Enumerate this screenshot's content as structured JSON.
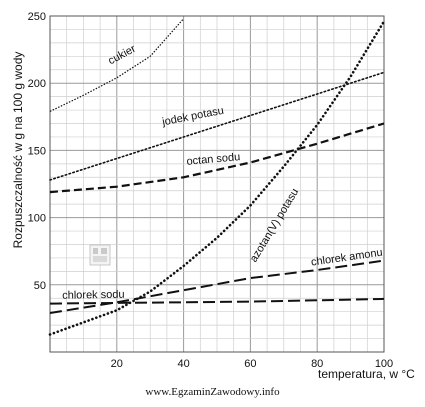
{
  "chart_data": {
    "type": "line",
    "title": "",
    "xlabel": "temperatura, w °C",
    "ylabel": "Rozpuszczalność w g na 100 g wody",
    "xlim": [
      0,
      100
    ],
    "ylim": [
      0,
      250
    ],
    "x_ticks": [
      20,
      40,
      60,
      80,
      100
    ],
    "y_ticks": [
      50,
      100,
      150,
      200,
      250
    ],
    "grid": true,
    "series": [
      {
        "name": "cukier",
        "dash": "dotted-fine",
        "x": [
          0,
          10,
          20,
          30,
          40
        ],
        "y": [
          179,
          191,
          204,
          220,
          248
        ]
      },
      {
        "name": "jodek potasu",
        "dash": "dotted",
        "x": [
          0,
          20,
          40,
          60,
          80,
          100
        ],
        "y": [
          128,
          144,
          160,
          176,
          192,
          208
        ]
      },
      {
        "name": "octan sodu",
        "dash": "dashed",
        "x": [
          0,
          20,
          40,
          60,
          80,
          100
        ],
        "y": [
          119,
          123,
          130,
          141,
          155,
          170
        ]
      },
      {
        "name": "azotan(V) potasu",
        "dash": "dotted-bold",
        "x": [
          0,
          20,
          30,
          40,
          50,
          60,
          70,
          80,
          90,
          100
        ],
        "y": [
          13,
          31,
          45,
          64,
          85,
          109,
          138,
          169,
          205,
          246
        ]
      },
      {
        "name": "chlorek amonu",
        "dash": "long-dashed",
        "x": [
          0,
          20,
          40,
          60,
          80,
          100
        ],
        "y": [
          29,
          37,
          46,
          55,
          61,
          68
        ]
      },
      {
        "name": "chlorek sodu",
        "dash": "long-dashed",
        "x": [
          0,
          20,
          40,
          60,
          80,
          100
        ],
        "y": [
          36,
          36.5,
          37,
          37.5,
          38.5,
          39.5
        ]
      }
    ]
  },
  "footer": {
    "url": "www.EgzaminZawodowy.info"
  }
}
